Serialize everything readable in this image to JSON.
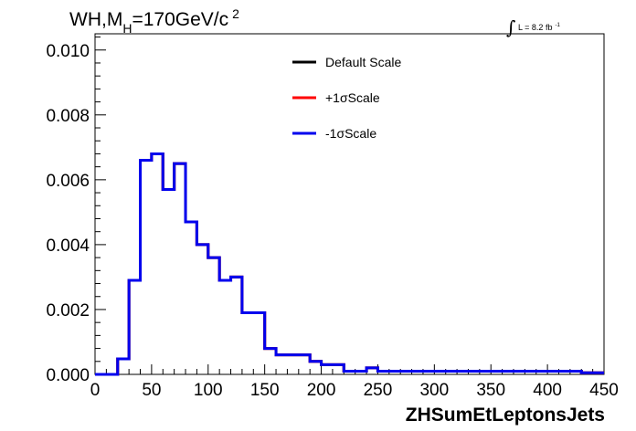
{
  "chart_data": {
    "type": "line",
    "title_parts": {
      "main": "WH,M",
      "sub": "H",
      "after": "=170GeV/c",
      "sup": "2"
    },
    "lumi_label": {
      "integral": "∫",
      "text": "L = 8.2 fb",
      "sup": "-1"
    },
    "xlabel": "ZHSumEtLeptonsJets",
    "ylabel": "",
    "xlim": [
      0,
      450
    ],
    "ylim": [
      0,
      0.0105
    ],
    "x_ticks": [
      "0",
      "50",
      "100",
      "150",
      "200",
      "250",
      "300",
      "350",
      "400",
      "450"
    ],
    "y_ticks": [
      "0.000",
      "0.002",
      "0.004",
      "0.006",
      "0.008",
      "0.010"
    ],
    "legend_position": "top-center",
    "bin_width": 10,
    "bin_edges_start": 0,
    "series": [
      {
        "name": "Default Scale",
        "color": "#000000",
        "values": [
          0,
          0,
          0.00048,
          0.0029,
          0.0066,
          0.0068,
          0.0057,
          0.0065,
          0.0047,
          0.004,
          0.0036,
          0.0029,
          0.003,
          0.0019,
          0.0019,
          0.0008,
          0.0006,
          0.0006,
          0.0006,
          0.0004,
          0.0003,
          0.0003,
          0.0001,
          0.0001,
          0.0002,
          0.0001,
          0.0001,
          0.0001,
          0.0001,
          0.0001,
          0.0001,
          0.0001,
          0.0001,
          0.0001,
          0.0001,
          0.0001,
          0.0001,
          0.0001,
          0.0001,
          0.0001,
          0.0001,
          0.0001,
          0.0001,
          5e-05,
          5e-05
        ]
      },
      {
        "name": "+1σScale",
        "color": "#ff0000",
        "values": [
          0,
          0,
          0.00048,
          0.0029,
          0.0066,
          0.0068,
          0.0057,
          0.0065,
          0.0047,
          0.004,
          0.0036,
          0.0029,
          0.003,
          0.0019,
          0.0019,
          0.0008,
          0.0006,
          0.0006,
          0.0006,
          0.0004,
          0.0003,
          0.0003,
          0.0001,
          0.0001,
          0.0002,
          0.0001,
          0.0001,
          0.0001,
          0.0001,
          0.0001,
          0.0001,
          0.0001,
          0.0001,
          0.0001,
          0.0001,
          0.0001,
          0.0001,
          0.0001,
          0.0001,
          0.0001,
          0.0001,
          0.0001,
          0.0001,
          5e-05,
          5e-05
        ]
      },
      {
        "name": "-1σScale",
        "color": "#0000ee",
        "values": [
          0,
          0,
          0.00048,
          0.0029,
          0.0066,
          0.0068,
          0.0057,
          0.0065,
          0.0047,
          0.004,
          0.0036,
          0.0029,
          0.003,
          0.0019,
          0.0019,
          0.0008,
          0.0006,
          0.0006,
          0.0006,
          0.0004,
          0.0003,
          0.0003,
          0.0001,
          0.0001,
          0.0002,
          0.0001,
          0.0001,
          0.0001,
          0.0001,
          0.0001,
          0.0001,
          0.0001,
          0.0001,
          0.0001,
          0.0001,
          0.0001,
          0.0001,
          0.0001,
          0.0001,
          0.0001,
          0.0001,
          0.0001,
          0.0001,
          5e-05,
          5e-05
        ]
      }
    ]
  }
}
